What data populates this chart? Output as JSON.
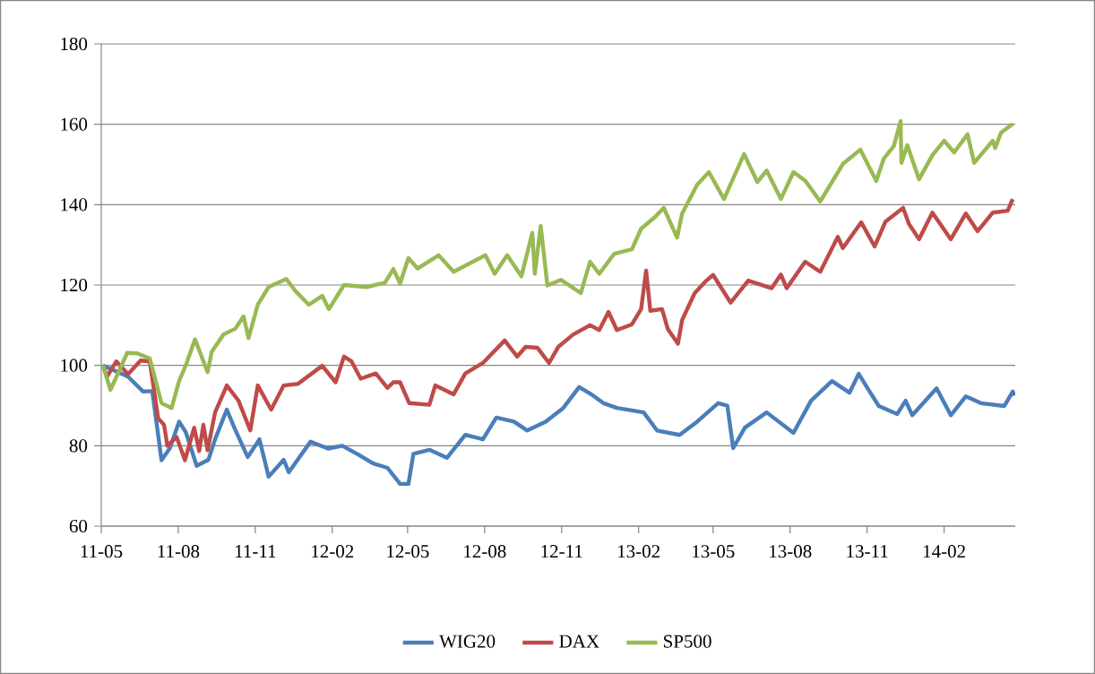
{
  "chart_data": {
    "type": "line",
    "xlim": [
      "2011-05-01",
      "2014-04-27"
    ],
    "ylim": [
      60,
      180
    ],
    "yticks": [
      60,
      80,
      100,
      120,
      140,
      160,
      180
    ],
    "xticks": [
      {
        "value": "2011-05-01",
        "label": "11-05"
      },
      {
        "value": "2011-08-01",
        "label": "11-08"
      },
      {
        "value": "2011-11-01",
        "label": "11-11"
      },
      {
        "value": "2012-02-01",
        "label": "12-02"
      },
      {
        "value": "2012-05-01",
        "label": "12-05"
      },
      {
        "value": "2012-08-01",
        "label": "12-08"
      },
      {
        "value": "2012-11-01",
        "label": "12-11"
      },
      {
        "value": "2013-02-01",
        "label": "13-02"
      },
      {
        "value": "2013-05-01",
        "label": "13-05"
      },
      {
        "value": "2013-08-01",
        "label": "13-08"
      },
      {
        "value": "2013-11-01",
        "label": "13-11"
      },
      {
        "value": "2014-02-01",
        "label": "14-02"
      }
    ],
    "grid": "y",
    "legend": "bottom",
    "marker": "none",
    "series": [
      {
        "name": "WIG20",
        "color": "#4a7ebb",
        "x": [
          "2011-05-03",
          "2011-06-02",
          "2011-06-20",
          "2011-07-01",
          "2011-07-12",
          "2011-07-22",
          "2011-08-02",
          "2011-08-10",
          "2011-08-23",
          "2011-09-06",
          "2011-09-14",
          "2011-09-28",
          "2011-10-08",
          "2011-10-23",
          "2011-11-06",
          "2011-11-17",
          "2011-12-05",
          "2011-12-11",
          "2012-01-06",
          "2012-01-27",
          "2012-02-13",
          "2012-03-03",
          "2012-03-21",
          "2012-04-07",
          "2012-04-22",
          "2012-05-02",
          "2012-05-08",
          "2012-05-27",
          "2012-06-17",
          "2012-07-09",
          "2012-07-30",
          "2012-08-15",
          "2012-09-05",
          "2012-09-21",
          "2012-10-13",
          "2012-11-03",
          "2012-11-22",
          "2012-12-05",
          "2012-12-21",
          "2013-01-06",
          "2013-02-07",
          "2013-02-23",
          "2013-03-22",
          "2013-04-12",
          "2013-05-07",
          "2013-05-18",
          "2013-05-25",
          "2013-06-08",
          "2013-07-04",
          "2013-08-05",
          "2013-08-26",
          "2013-09-20",
          "2013-10-11",
          "2013-10-22",
          "2013-11-04",
          "2013-11-15",
          "2013-12-07",
          "2013-12-17",
          "2013-12-25",
          "2014-01-23",
          "2014-02-09",
          "2014-02-27",
          "2014-03-17",
          "2014-04-14",
          "2014-04-24",
          "2014-04-26"
        ],
        "values": [
          100,
          97.2,
          93.5,
          93.6,
          76.4,
          79.4,
          86,
          83.4,
          75,
          76.5,
          81.6,
          89,
          84,
          77.2,
          81.6,
          72.3,
          76.5,
          73.4,
          81,
          79.3,
          80,
          77.8,
          75.6,
          74.5,
          70.5,
          70.5,
          78,
          79,
          77,
          82.7,
          81.6,
          87,
          86,
          83.8,
          86,
          89.4,
          94.6,
          93,
          90.6,
          89.4,
          88.3,
          83.8,
          82.7,
          86,
          90.6,
          90,
          79.4,
          84.5,
          88.3,
          83.2,
          91.2,
          96.1,
          93.2,
          97.9,
          93.5,
          89.9,
          87.9,
          91.2,
          87.6,
          94.3,
          87.6,
          92.3,
          90.6,
          89.9,
          93.5,
          92.5
        ]
      },
      {
        "name": "DAX",
        "color": "#be4b48",
        "x": [
          "2011-05-03",
          "2011-05-08",
          "2011-05-19",
          "2011-06-02",
          "2011-06-17",
          "2011-06-28",
          "2011-07-08",
          "2011-07-15",
          "2011-07-19",
          "2011-07-30",
          "2011-08-09",
          "2011-08-20",
          "2011-08-26",
          "2011-08-31",
          "2011-09-05",
          "2011-09-14",
          "2011-09-28",
          "2011-10-12",
          "2011-10-26",
          "2011-11-04",
          "2011-11-20",
          "2011-12-05",
          "2011-12-22",
          "2012-01-20",
          "2012-02-05",
          "2012-02-15",
          "2012-02-24",
          "2012-03-06",
          "2012-03-24",
          "2012-04-07",
          "2012-04-14",
          "2012-04-22",
          "2012-05-03",
          "2012-05-27",
          "2012-06-03",
          "2012-06-25",
          "2012-07-09",
          "2012-07-30",
          "2012-08-25",
          "2012-09-09",
          "2012-09-19",
          "2012-10-03",
          "2012-10-17",
          "2012-10-28",
          "2012-11-15",
          "2012-12-05",
          "2012-12-16",
          "2012-12-27",
          "2013-01-06",
          "2013-01-24",
          "2013-02-04",
          "2013-02-10",
          "2013-02-15",
          "2013-03-01",
          "2013-03-08",
          "2013-03-20",
          "2013-03-25",
          "2013-04-09",
          "2013-04-23",
          "2013-05-01",
          "2013-05-22",
          "2013-06-12",
          "2013-07-10",
          "2013-07-21",
          "2013-07-28",
          "2013-08-19",
          "2013-09-06",
          "2013-09-27",
          "2013-10-03",
          "2013-10-25",
          "2013-11-10",
          "2013-11-23",
          "2013-12-14",
          "2013-12-21",
          "2014-01-02",
          "2014-01-18",
          "2014-02-09",
          "2014-02-27",
          "2014-03-13",
          "2014-03-31",
          "2014-04-18",
          "2014-04-24"
        ],
        "values": [
          100,
          97.2,
          101,
          97.8,
          101.2,
          101,
          86.8,
          85.2,
          80,
          82.2,
          76.4,
          84.5,
          78.7,
          85.2,
          78.9,
          88.3,
          95,
          91.2,
          83.8,
          95,
          89,
          95,
          95.4,
          99.9,
          95.8,
          102.2,
          101,
          96.7,
          98,
          94.4,
          95.8,
          95.8,
          90.6,
          90.2,
          95,
          92.8,
          98,
          100.6,
          106.2,
          102.2,
          104.6,
          104.4,
          100.6,
          104.6,
          107.7,
          110,
          108.8,
          113.3,
          108.8,
          110.2,
          114,
          123.6,
          113.6,
          114,
          109,
          105.4,
          111.3,
          118,
          121.1,
          122.5,
          115.6,
          121.1,
          119.2,
          122.6,
          119.2,
          125.8,
          123.3,
          132,
          129.2,
          135.6,
          129.6,
          135.8,
          139.2,
          135.2,
          131.4,
          138,
          131.4,
          137.8,
          133.4,
          138,
          138.5,
          141.4
        ]
      },
      {
        "name": "SP500",
        "color": "#98b954",
        "x": [
          "2011-05-03",
          "2011-05-12",
          "2011-06-01",
          "2011-06-13",
          "2011-06-28",
          "2011-07-12",
          "2011-07-24",
          "2011-08-02",
          "2011-08-10",
          "2011-08-21",
          "2011-09-05",
          "2011-09-10",
          "2011-09-24",
          "2011-10-08",
          "2011-10-18",
          "2011-10-24",
          "2011-11-04",
          "2011-11-17",
          "2011-12-08",
          "2011-12-19",
          "2012-01-04",
          "2012-01-20",
          "2012-01-28",
          "2012-02-15",
          "2012-03-13",
          "2012-04-04",
          "2012-04-14",
          "2012-04-22",
          "2012-05-02",
          "2012-05-13",
          "2012-06-07",
          "2012-06-25",
          "2012-08-02",
          "2012-08-13",
          "2012-08-28",
          "2012-09-14",
          "2012-09-27",
          "2012-09-30",
          "2012-10-07",
          "2012-10-15",
          "2012-10-31",
          "2012-11-24",
          "2012-12-05",
          "2012-12-16",
          "2013-01-03",
          "2013-01-24",
          "2013-02-04",
          "2013-02-21",
          "2013-03-03",
          "2013-03-19",
          "2013-03-25",
          "2013-04-12",
          "2013-04-26",
          "2013-05-14",
          "2013-06-07",
          "2013-06-23",
          "2013-07-04",
          "2013-07-21",
          "2013-08-05",
          "2013-08-19",
          "2013-09-06",
          "2013-10-03",
          "2013-10-24",
          "2013-11-12",
          "2013-11-21",
          "2013-12-03",
          "2013-12-11",
          "2013-12-12",
          "2013-12-19",
          "2014-01-02",
          "2014-01-18",
          "2014-02-01",
          "2014-02-13",
          "2014-03-01",
          "2014-03-09",
          "2014-03-31",
          "2014-04-03",
          "2014-04-10",
          "2014-04-24"
        ],
        "values": [
          100,
          93.9,
          103.1,
          103,
          101.7,
          90.6,
          89.4,
          96.1,
          100,
          106.5,
          98.3,
          103.4,
          107.7,
          109.1,
          112.2,
          106.8,
          115.1,
          119.5,
          121.5,
          118.5,
          115.1,
          117.3,
          114,
          120,
          119.5,
          120.6,
          124,
          120.4,
          126.7,
          124.1,
          127.4,
          123.3,
          127.4,
          122.8,
          127.4,
          122.2,
          133,
          122.8,
          134.7,
          119.9,
          121.3,
          118,
          125.8,
          122.8,
          127.8,
          128.9,
          134,
          137,
          139.2,
          131.8,
          137.8,
          145,
          148.1,
          141.4,
          152.6,
          145.6,
          148.5,
          141.4,
          148.1,
          146,
          140.8,
          150.1,
          153.7,
          145.9,
          151.5,
          154.6,
          160.8,
          150.4,
          154.8,
          146.3,
          152.3,
          155.9,
          153,
          157.5,
          150.4,
          155.9,
          154.1,
          157.9,
          160.1
        ]
      }
    ]
  }
}
